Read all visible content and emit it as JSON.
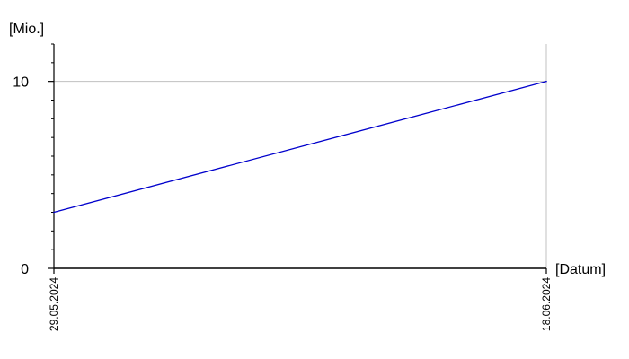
{
  "chart_data": {
    "type": "line",
    "x": [
      "29.05.2024",
      "18.06.2024"
    ],
    "series": [
      {
        "values": [
          3,
          10
        ],
        "color": "#0000cc"
      }
    ],
    "xlabel": "[Datum]",
    "ylabel": "[Mio.]",
    "ylim": [
      0,
      12
    ],
    "yticks": [
      0,
      10
    ],
    "y_minor_step": 1,
    "grid": "horizontal at 10",
    "colors": {
      "axis": "#000000",
      "grid": "#c0c0c0",
      "line": "#0000cc"
    }
  }
}
